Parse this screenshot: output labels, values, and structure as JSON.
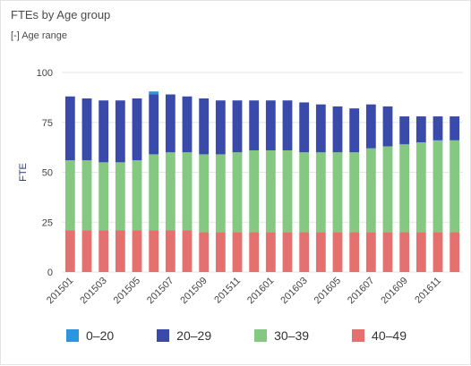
{
  "header": {
    "title": "FTEs by Age group",
    "subtitle": "[-] Age range"
  },
  "chart_data": {
    "type": "bar",
    "stacked": true,
    "ylabel": "FTE",
    "xlabel": "",
    "ylim": [
      0,
      100
    ],
    "yticks": [
      0,
      25,
      50,
      75,
      100
    ],
    "grid": true,
    "legend_position": "bottom",
    "categories": [
      "201501",
      "201502",
      "201503",
      "201504",
      "201505",
      "201506",
      "201507",
      "201508",
      "201509",
      "201510",
      "201511",
      "201512",
      "201601",
      "201602",
      "201603",
      "201604",
      "201605",
      "201606",
      "201607",
      "201608",
      "201609",
      "201610",
      "201611",
      "201612"
    ],
    "tick_labels": [
      "201501",
      "201503",
      "201505",
      "201507",
      "201509",
      "201511",
      "201601",
      "201603",
      "201605",
      "201607",
      "201609",
      "201611"
    ],
    "series": [
      {
        "name": "40–49",
        "color": "#e4706f",
        "values": [
          21,
          21,
          21,
          21,
          21,
          21,
          21,
          21,
          20,
          20,
          20,
          20,
          20,
          20,
          20,
          20,
          20,
          20,
          20,
          20,
          20,
          20,
          20,
          20
        ]
      },
      {
        "name": "30–39",
        "color": "#85c882",
        "values": [
          35,
          35,
          34,
          34,
          35,
          38,
          39,
          39,
          39,
          39,
          40,
          41,
          41,
          41,
          40,
          40,
          40,
          40,
          42,
          43,
          44,
          45,
          46,
          46
        ]
      },
      {
        "name": "20–29",
        "color": "#3a4aab",
        "values": [
          32,
          31,
          31,
          31,
          31,
          30,
          29,
          28,
          28,
          27,
          26,
          25,
          25,
          25,
          25,
          24,
          23,
          22,
          22,
          20,
          14,
          13,
          12,
          12
        ]
      },
      {
        "name": "0–20",
        "color": "#2d95dd",
        "values": [
          0,
          0,
          0,
          0,
          0,
          1.5,
          0,
          0,
          0,
          0,
          0,
          0,
          0,
          0,
          0,
          0,
          0,
          0,
          0,
          0,
          0,
          0,
          0,
          0
        ]
      }
    ],
    "legend": [
      "0–20",
      "20–29",
      "30–39",
      "40–49"
    ]
  }
}
